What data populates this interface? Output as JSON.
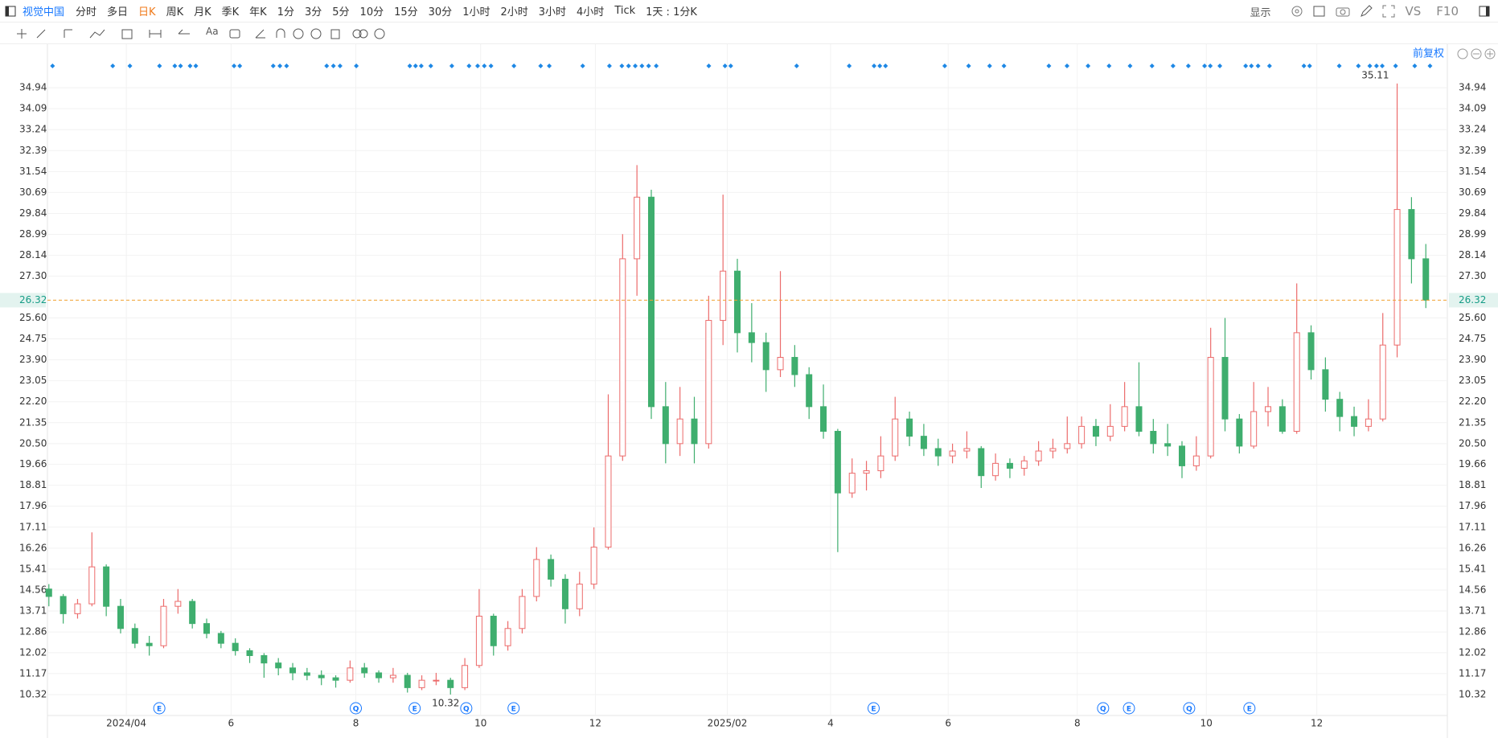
{
  "toolbar": {
    "symbol": "视觉中国",
    "periods": [
      "分时",
      "多日",
      "日K",
      "周K",
      "月K",
      "季K",
      "年K",
      "1分",
      "3分",
      "5分",
      "10分",
      "15分",
      "30分",
      "1小时",
      "2小时",
      "3小时",
      "4小时",
      "Tick"
    ],
    "active_period": 2,
    "interval": "1天 : 1分K",
    "display": "显示",
    "vs": "VS",
    "f10": "F10"
  },
  "chart_data": {
    "type": "candlestick",
    "adjust": "前复权",
    "up_color": "#ec6b6b",
    "down_color": "#3fae6e",
    "grid": true,
    "values": [
      [
        14.6,
        14.8,
        13.9,
        14.3
      ],
      [
        14.3,
        14.4,
        13.2,
        13.6
      ],
      [
        13.6,
        14.2,
        13.4,
        14.0
      ],
      [
        14.0,
        16.9,
        13.9,
        15.5
      ],
      [
        15.5,
        15.6,
        13.5,
        13.9
      ],
      [
        13.9,
        14.2,
        12.8,
        13.0
      ],
      [
        13.0,
        13.2,
        12.2,
        12.4
      ],
      [
        12.4,
        12.7,
        11.9,
        12.3
      ],
      [
        12.3,
        14.2,
        12.2,
        13.9
      ],
      [
        13.9,
        14.6,
        13.6,
        14.1
      ],
      [
        14.1,
        14.2,
        13.0,
        13.2
      ],
      [
        13.2,
        13.4,
        12.6,
        12.8
      ],
      [
        12.8,
        12.9,
        12.2,
        12.4
      ],
      [
        12.4,
        12.6,
        11.9,
        12.1
      ],
      [
        12.1,
        12.2,
        11.6,
        11.9
      ],
      [
        11.9,
        12.0,
        11.0,
        11.6
      ],
      [
        11.6,
        11.8,
        11.1,
        11.4
      ],
      [
        11.4,
        11.6,
        10.9,
        11.2
      ],
      [
        11.2,
        11.4,
        10.9,
        11.1
      ],
      [
        11.1,
        11.3,
        10.7,
        11.0
      ],
      [
        11.0,
        11.1,
        10.6,
        10.9
      ],
      [
        10.9,
        11.7,
        10.8,
        11.4
      ],
      [
        11.4,
        11.6,
        11.0,
        11.2
      ],
      [
        11.2,
        11.3,
        10.8,
        11.0
      ],
      [
        11.0,
        11.4,
        10.8,
        11.1
      ],
      [
        11.1,
        11.2,
        10.4,
        10.6
      ],
      [
        10.6,
        11.1,
        10.5,
        10.9
      ],
      [
        10.9,
        11.2,
        10.7,
        10.9
      ],
      [
        10.9,
        11.0,
        10.32,
        10.6
      ],
      [
        10.6,
        11.8,
        10.5,
        11.5
      ],
      [
        11.5,
        14.6,
        11.4,
        13.5
      ],
      [
        13.5,
        13.6,
        11.9,
        12.3
      ],
      [
        12.3,
        13.3,
        12.1,
        13.0
      ],
      [
        13.0,
        14.6,
        12.8,
        14.3
      ],
      [
        14.3,
        16.3,
        14.1,
        15.8
      ],
      [
        15.8,
        16.0,
        14.7,
        15.0
      ],
      [
        15.0,
        15.2,
        13.2,
        13.8
      ],
      [
        13.8,
        15.3,
        13.5,
        14.8
      ],
      [
        14.8,
        17.1,
        14.6,
        16.3
      ],
      [
        16.3,
        22.5,
        16.2,
        20.0
      ],
      [
        20.0,
        29.0,
        19.8,
        28.0
      ],
      [
        28.0,
        31.8,
        26.5,
        30.5
      ],
      [
        30.5,
        30.8,
        21.5,
        22.0
      ],
      [
        22.0,
        23.0,
        19.7,
        20.5
      ],
      [
        20.5,
        22.8,
        20.0,
        21.5
      ],
      [
        21.5,
        22.4,
        19.7,
        20.5
      ],
      [
        20.5,
        26.5,
        20.3,
        25.5
      ],
      [
        25.5,
        30.6,
        24.5,
        27.5
      ],
      [
        27.5,
        28.0,
        24.2,
        25.0
      ],
      [
        25.0,
        26.2,
        23.8,
        24.6
      ],
      [
        24.6,
        25.0,
        22.6,
        23.5
      ],
      [
        23.5,
        27.5,
        23.2,
        24.0
      ],
      [
        24.0,
        24.5,
        22.8,
        23.3
      ],
      [
        23.3,
        23.6,
        21.5,
        22.0
      ],
      [
        22.0,
        22.9,
        20.7,
        21.0
      ],
      [
        21.0,
        21.1,
        16.1,
        18.5
      ],
      [
        18.5,
        19.9,
        18.3,
        19.3
      ],
      [
        19.3,
        19.8,
        18.6,
        19.4
      ],
      [
        19.4,
        20.8,
        19.1,
        20.0
      ],
      [
        20.0,
        22.4,
        19.8,
        21.5
      ],
      [
        21.5,
        21.8,
        20.4,
        20.8
      ],
      [
        20.8,
        21.3,
        20.0,
        20.3
      ],
      [
        20.3,
        20.7,
        19.6,
        20.0
      ],
      [
        20.0,
        20.5,
        19.7,
        20.2
      ],
      [
        20.2,
        21.0,
        19.9,
        20.3
      ],
      [
        20.3,
        20.4,
        18.7,
        19.2
      ],
      [
        19.2,
        20.1,
        19.0,
        19.7
      ],
      [
        19.7,
        19.9,
        19.1,
        19.5
      ],
      [
        19.5,
        20.0,
        19.2,
        19.8
      ],
      [
        19.8,
        20.6,
        19.6,
        20.2
      ],
      [
        20.2,
        20.7,
        19.9,
        20.3
      ],
      [
        20.3,
        21.6,
        20.1,
        20.5
      ],
      [
        20.5,
        21.6,
        20.3,
        21.2
      ],
      [
        21.2,
        21.5,
        20.4,
        20.8
      ],
      [
        20.8,
        22.1,
        20.6,
        21.2
      ],
      [
        21.2,
        23.0,
        21.0,
        22.0
      ],
      [
        22.0,
        23.8,
        20.8,
        21.0
      ],
      [
        21.0,
        21.5,
        20.1,
        20.5
      ],
      [
        20.5,
        21.3,
        20.0,
        20.4
      ],
      [
        20.4,
        20.6,
        19.1,
        19.6
      ],
      [
        19.6,
        20.8,
        19.4,
        20.0
      ],
      [
        20.0,
        25.2,
        19.9,
        24.0
      ],
      [
        24.0,
        25.6,
        21.0,
        21.5
      ],
      [
        21.5,
        21.7,
        20.1,
        20.4
      ],
      [
        20.4,
        23.0,
        20.3,
        21.8
      ],
      [
        21.8,
        22.8,
        21.2,
        22.0
      ],
      [
        22.0,
        22.3,
        20.9,
        21.0
      ],
      [
        21.0,
        27.0,
        20.9,
        25.0
      ],
      [
        25.0,
        25.3,
        23.1,
        23.5
      ],
      [
        23.5,
        24.0,
        21.8,
        22.3
      ],
      [
        22.3,
        22.6,
        21.0,
        21.6
      ],
      [
        21.6,
        22.0,
        20.8,
        21.2
      ],
      [
        21.2,
        22.3,
        21.0,
        21.5
      ],
      [
        21.5,
        25.8,
        21.4,
        24.5
      ],
      [
        24.5,
        35.11,
        24.0,
        30.0
      ],
      [
        30.0,
        30.5,
        27.0,
        28.0
      ],
      [
        28.0,
        28.6,
        26.0,
        26.32
      ]
    ],
    "ylim": [
      9.47,
      35.89
    ],
    "yticks": [
      34.94,
      34.09,
      33.24,
      32.39,
      31.54,
      30.69,
      29.84,
      28.99,
      28.14,
      {
        "value": 27.3,
        "label": "27.30"
      },
      {
        "value": 25.6,
        "label": "25.60"
      },
      24.75,
      {
        "value": 23.9,
        "label": "23.90"
      },
      23.05,
      {
        "value": 22.2,
        "label": "22.20"
      },
      21.35,
      {
        "value": 20.5,
        "label": "20.50"
      },
      19.66,
      18.81,
      17.96,
      17.11,
      16.26,
      15.41,
      14.56,
      13.71,
      12.86,
      12.02,
      11.17,
      10.32
    ],
    "xlim": [
      -0.1,
      97.5
    ],
    "xticks": [
      {
        "value": 5.4,
        "label": "2024/04"
      },
      {
        "value": 12.7,
        "label": "6"
      },
      {
        "value": 21.4,
        "label": "8"
      },
      {
        "value": 30.1,
        "label": "10"
      },
      {
        "value": 38.1,
        "label": "12"
      },
      {
        "value": 47.3,
        "label": "2025/02"
      },
      {
        "value": 54.5,
        "label": "4"
      },
      {
        "value": 62.7,
        "label": "6"
      },
      {
        "value": 71.7,
        "label": "8"
      },
      {
        "value": 80.7,
        "label": "10"
      },
      {
        "value": 88.4,
        "label": "12"
      }
    ],
    "events": [
      {
        "x": 7.7,
        "label": "E"
      },
      {
        "x": 21.4,
        "label": "Q"
      },
      {
        "x": 25.5,
        "label": "E"
      },
      {
        "x": 29.1,
        "label": "Q"
      },
      {
        "x": 32.4,
        "label": "E"
      },
      {
        "x": 57.5,
        "label": "E"
      },
      {
        "x": 73.5,
        "label": "Q"
      },
      {
        "x": 75.3,
        "label": "E"
      },
      {
        "x": 79.5,
        "label": "Q"
      },
      {
        "x": 83.7,
        "label": "E"
      }
    ]
  }
}
